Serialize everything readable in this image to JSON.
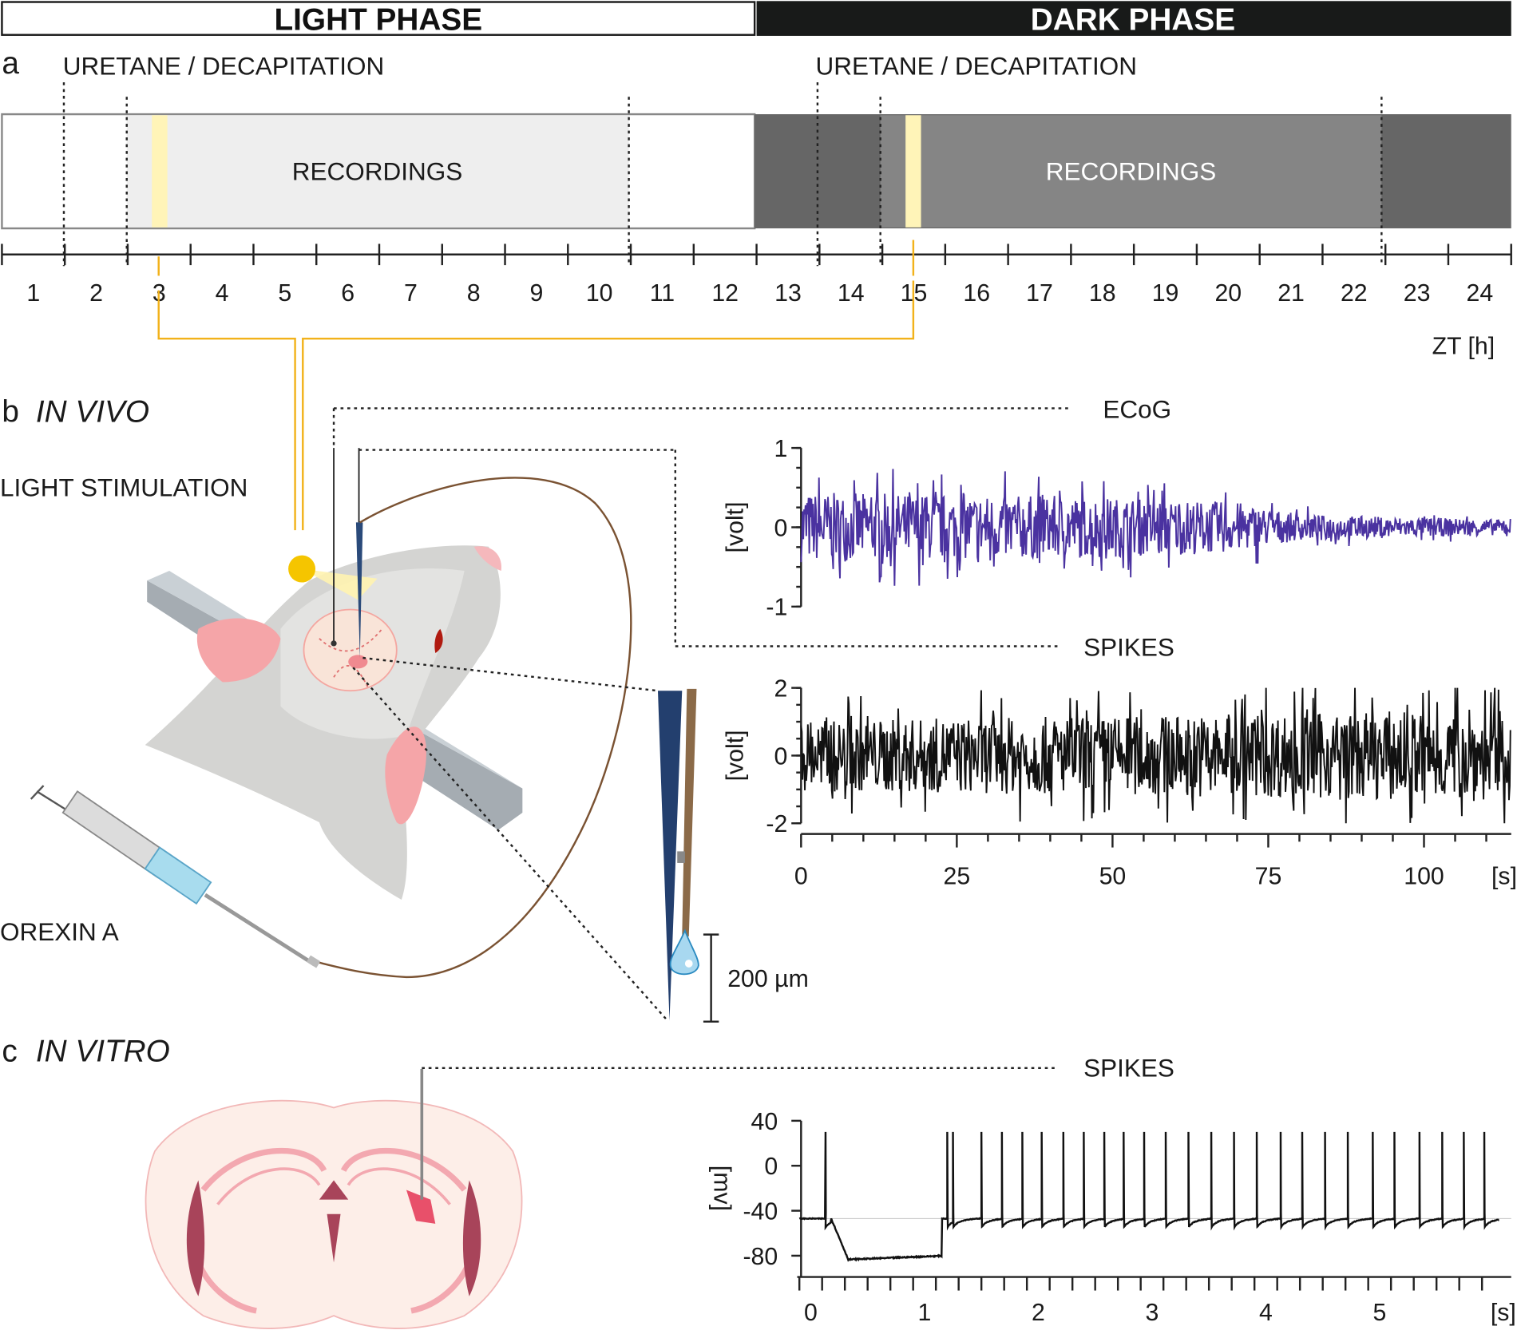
{
  "header": {
    "light_phase": "LIGHT PHASE",
    "dark_phase": "DARK PHASE"
  },
  "panel_a": {
    "label": "a",
    "uretane_label_1": "URETANE / DECAPITATION",
    "uretane_label_2": "URETANE / DECAPITATION",
    "recordings_light": "RECORDINGS",
    "recordings_dark": "RECORDINGS",
    "hours": [
      "1",
      "2",
      "3",
      "4",
      "5",
      "6",
      "7",
      "8",
      "9",
      "10",
      "11",
      "12",
      "13",
      "14",
      "15",
      "16",
      "17",
      "18",
      "19",
      "20",
      "21",
      "22",
      "23",
      "24"
    ],
    "axis_unit": "ZT [h]",
    "uretane_times_h": [
      1.5,
      13.5
    ],
    "recording_windows_h": [
      [
        2.5,
        10.5
      ],
      [
        14.5,
        22.5
      ]
    ],
    "light_stim_h": [
      3,
      15
    ],
    "colors": {
      "light": "#ffffff",
      "dark": "#666666",
      "recording_light": "#eeeeee",
      "recording_dark": "#858585",
      "stim": "#fff4b8",
      "bracket": "#f2b21b"
    }
  },
  "panel_b": {
    "label": "b",
    "title": "IN VIVO",
    "light_stimulation": "LIGHT STIMULATION",
    "orexin": "OREXIN A",
    "scale_bar": "200 µm",
    "ecog_title": "ECoG",
    "spikes_title": "SPIKES"
  },
  "panel_c": {
    "label": "c",
    "title": "IN VITRO",
    "spikes_title": "SPIKES"
  },
  "chart_data": [
    {
      "type": "line",
      "title": "ECoG",
      "ylabel": "[volt]",
      "xlabel": "[s]",
      "ylim": [
        -1,
        1
      ],
      "yticks": [
        "1",
        "0",
        "-1"
      ],
      "xlim": [
        0,
        114
      ],
      "color": "#4a32a0",
      "envelope": [
        {
          "x": 0,
          "amp": 0.55
        },
        {
          "x": 40,
          "amp": 0.5
        },
        {
          "x": 70,
          "amp": 0.4
        },
        {
          "x": 80,
          "amp": 0.2
        },
        {
          "x": 114,
          "amp": 0.12
        }
      ]
    },
    {
      "type": "line",
      "title": "SPIKES",
      "ylabel": "[volt]",
      "xlabel": "[s]",
      "ylim": [
        -2,
        2
      ],
      "yticks": [
        "2",
        "0",
        "-2"
      ],
      "xlim": [
        0,
        114
      ],
      "xticks": [
        "0",
        "25",
        "50",
        "75",
        "100"
      ],
      "x_unit": "[s]",
      "color": "#111111",
      "envelope": [
        {
          "x": 0,
          "amp": 1.3
        },
        {
          "x": 60,
          "amp": 1.5
        },
        {
          "x": 114,
          "amp": 1.7
        }
      ]
    },
    {
      "type": "line",
      "title": "SPIKES",
      "ylabel": "[mv]",
      "xlabel": "[s]",
      "ylim": [
        -90,
        40
      ],
      "yticks": [
        "40",
        "0",
        "-40",
        "-80"
      ],
      "xlim": [
        -0.1,
        6.1
      ],
      "xticks": [
        "0",
        "1",
        "2",
        "3",
        "4",
        "5"
      ],
      "x_unit": "[s]",
      "color": "#111111",
      "resting_mv": -47,
      "hyperpolarized_mv": -84,
      "hyperpolarization_s": [
        0.18,
        1.15
      ],
      "spike_times_s": [
        0.13,
        1.2,
        1.25,
        1.5,
        1.68,
        1.86,
        2.03,
        2.22,
        2.4,
        2.58,
        2.75,
        2.93,
        3.12,
        3.32,
        3.52,
        3.72,
        3.92,
        4.13,
        4.32,
        4.52,
        4.72,
        4.94,
        5.13,
        5.35,
        5.55,
        5.74,
        5.92
      ],
      "spike_peak_mv": 30
    }
  ]
}
